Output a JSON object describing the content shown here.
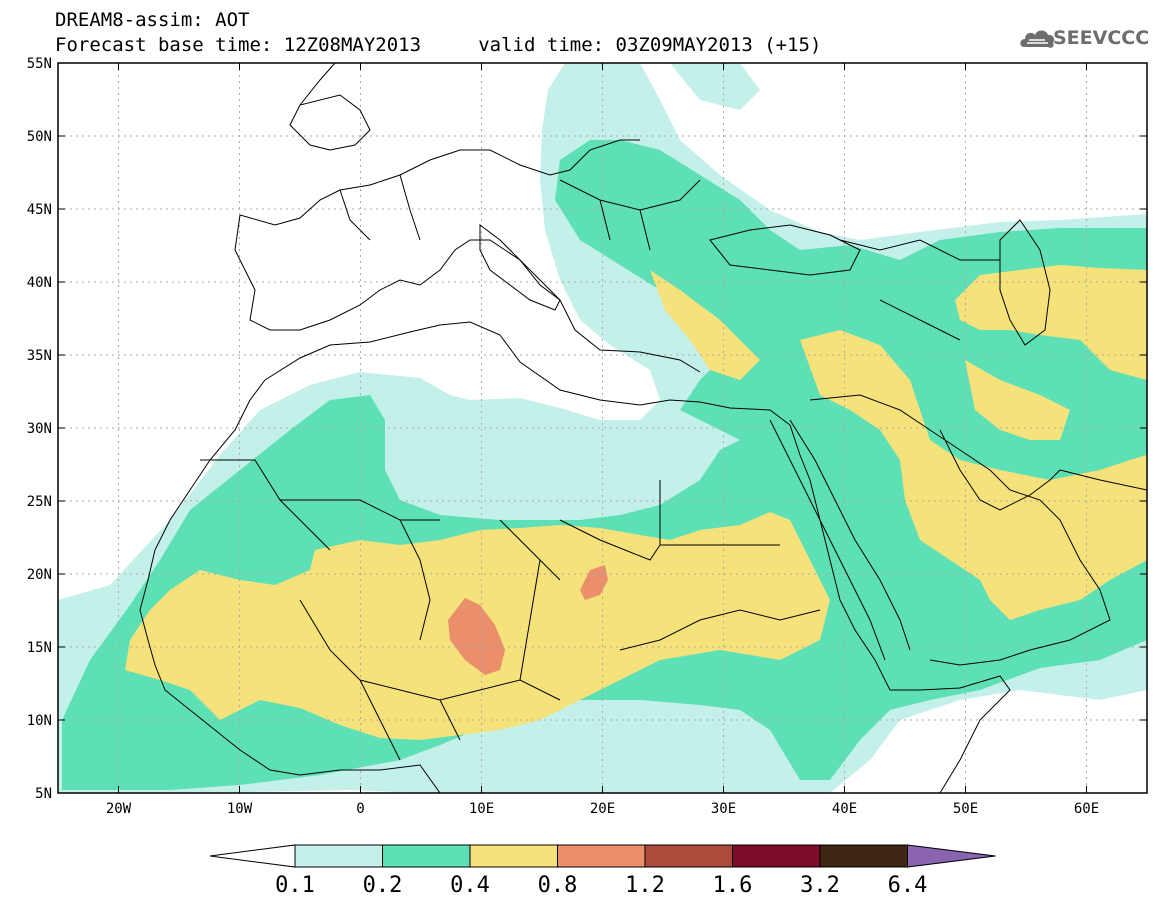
{
  "header": {
    "title_line1": "DREAM8-assim: AOT",
    "title_line2": "Forecast base time: 12Z08MAY2013     valid time: 03Z09MAY2013 (+15)"
  },
  "logo": {
    "text": "SEEVCCC",
    "icon": "cloud-icon"
  },
  "map": {
    "lon_range": [
      -25,
      65
    ],
    "lat_range": [
      5,
      55
    ],
    "lon_ticks": [
      {
        "value": -20,
        "label": "20W"
      },
      {
        "value": -10,
        "label": "10W"
      },
      {
        "value": 0,
        "label": "0"
      },
      {
        "value": 10,
        "label": "10E"
      },
      {
        "value": 20,
        "label": "20E"
      },
      {
        "value": 30,
        "label": "30E"
      },
      {
        "value": 40,
        "label": "40E"
      },
      {
        "value": 50,
        "label": "50E"
      },
      {
        "value": 60,
        "label": "60E"
      }
    ],
    "lat_ticks": [
      {
        "value": 5,
        "label": "5N"
      },
      {
        "value": 10,
        "label": "10N"
      },
      {
        "value": 15,
        "label": "15N"
      },
      {
        "value": 20,
        "label": "20N"
      },
      {
        "value": 25,
        "label": "25N"
      },
      {
        "value": 30,
        "label": "30N"
      },
      {
        "value": 35,
        "label": "35N"
      },
      {
        "value": 40,
        "label": "40N"
      },
      {
        "value": 45,
        "label": "45N"
      },
      {
        "value": 50,
        "label": "50N"
      },
      {
        "value": 55,
        "label": "55N"
      }
    ],
    "gridlines": "dotted"
  },
  "colorbar": {
    "labels": [
      "0.1",
      "0.2",
      "0.4",
      "0.8",
      "1.2",
      "1.6",
      "3.2",
      "6.4"
    ],
    "colors": [
      "#ffffff",
      "#c4f0ea",
      "#5ee0b7",
      "#f6e27a",
      "#ea8e6c",
      "#ab4b3b",
      "#7c0c2a",
      "#3d2612",
      "#8a64b0"
    ]
  },
  "colors": {
    "aot_0_1": "#c4f0ea",
    "aot_0_2": "#5ee0b7",
    "aot_0_4": "#f6e27a",
    "aot_0_8": "#ea8e6c",
    "coastline": "#000000"
  }
}
